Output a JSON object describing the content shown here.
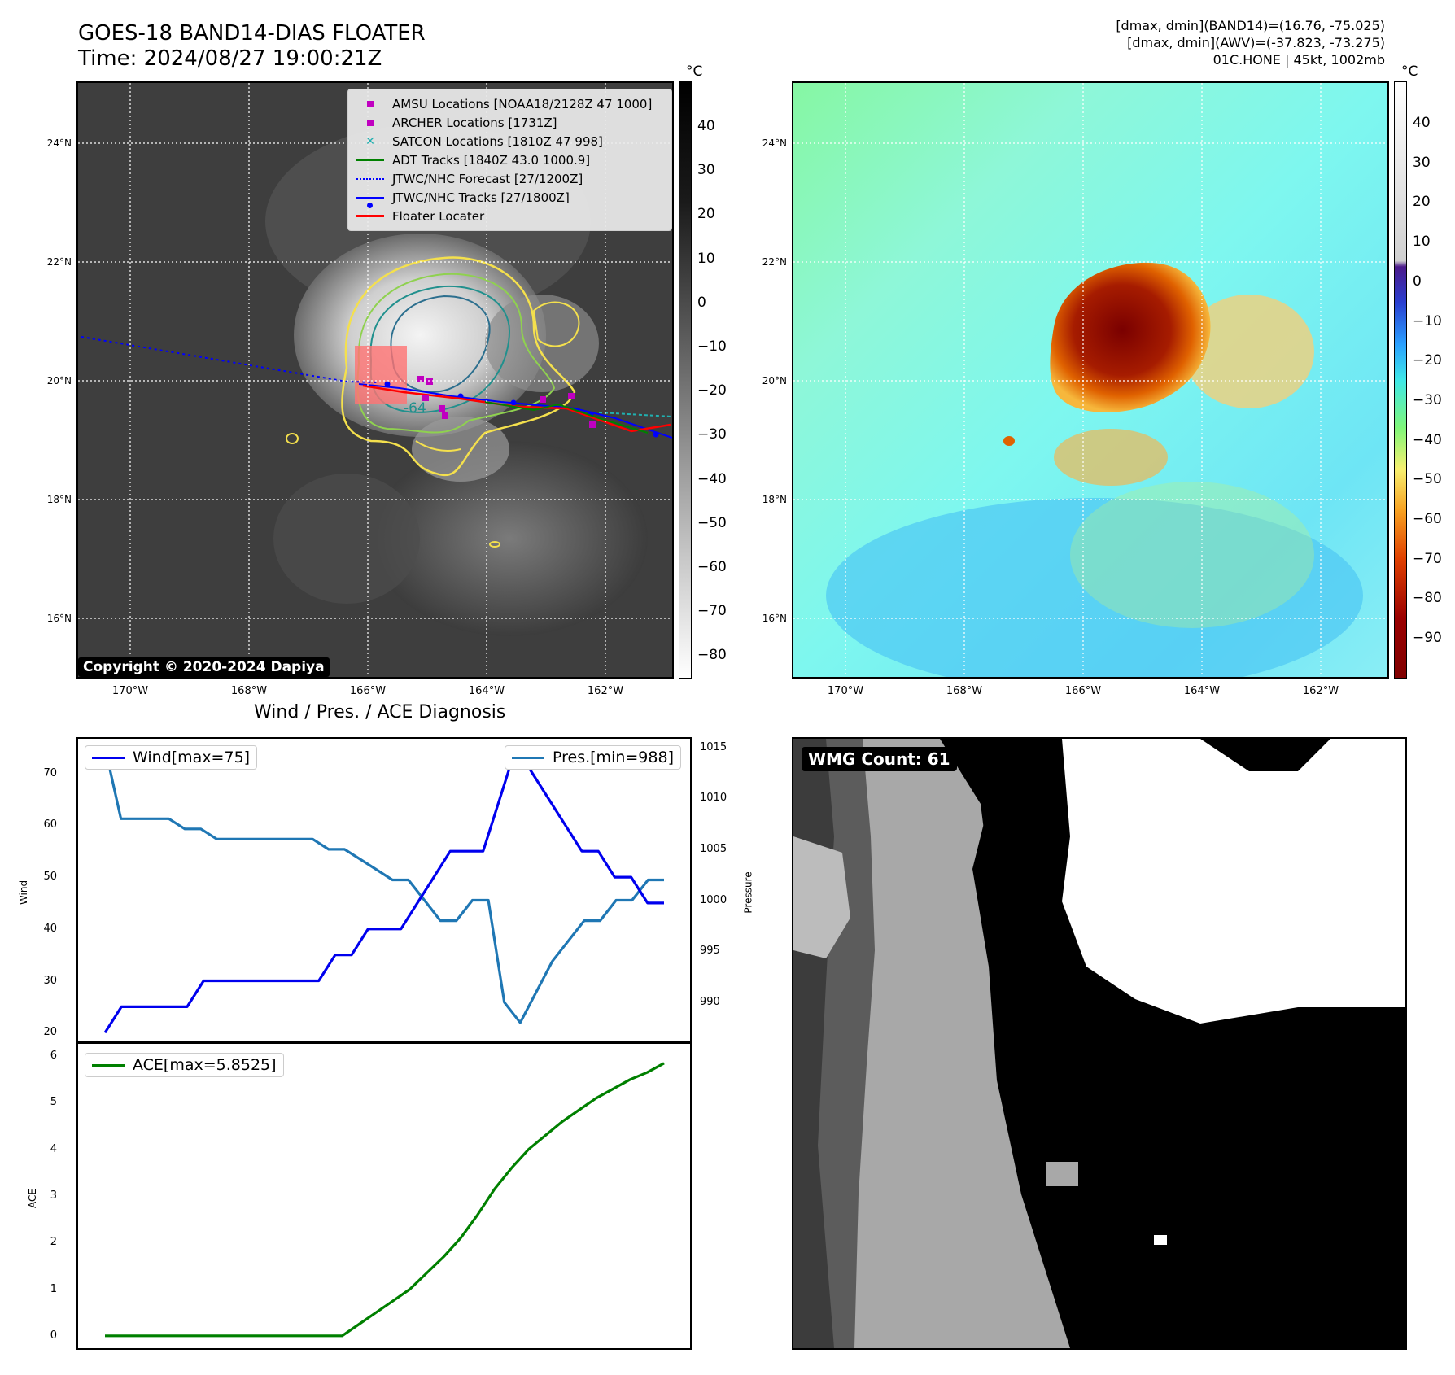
{
  "header": {
    "title_line1": "GOES-18 BAND14-DIAS FLOATER",
    "title_line2": "Time: 2024/08/27 19:00:21Z",
    "right_line1": "[dmax, dmin](BAND14)=(16.76, -75.025)",
    "right_line2": "[dmax, dmin](AWV)=(-37.823, -73.275)",
    "right_line3": "01C.HONE | 45kt, 1002mb"
  },
  "maps": {
    "lat_labels": [
      "24°N",
      "22°N",
      "20°N",
      "18°N",
      "16°N"
    ],
    "lon_labels": [
      "170°W",
      "168°W",
      "166°W",
      "164°W",
      "162°W"
    ],
    "copyright": "Copyright © 2020-2024 Dapiya",
    "contour_label": "-64"
  },
  "colorbar_gray": {
    "unit": "°C",
    "ticks": [
      "40",
      "30",
      "20",
      "10",
      "0",
      "−10",
      "−20",
      "−30",
      "−40",
      "−50",
      "−60",
      "−70",
      "−80"
    ]
  },
  "colorbar_color": {
    "unit": "°C",
    "ticks": [
      "40",
      "30",
      "20",
      "10",
      "0",
      "−10",
      "−20",
      "−30",
      "−40",
      "−50",
      "−60",
      "−70",
      "−80",
      "−90"
    ]
  },
  "legend": {
    "items": [
      {
        "label": "AMSU Locations [NOAA18/2128Z 47 1000]",
        "color": "#c000c0",
        "marker": "square"
      },
      {
        "label": "ARCHER Locations [1731Z]",
        "color": "#c000c0",
        "marker": "square"
      },
      {
        "label": "SATCON Locations [1810Z 47 998]",
        "color": "#20b0b0",
        "marker": "x"
      },
      {
        "label": "ADT Tracks [1840Z 43.0 1000.9]",
        "color": "#008000",
        "marker": "line"
      },
      {
        "label": "JTWC/NHC Forecast [27/1200Z]",
        "color": "#0000ff",
        "marker": "dotted"
      },
      {
        "label": "JTWC/NHC Tracks [27/1800Z]",
        "color": "#0000ff",
        "marker": "line-dot"
      },
      {
        "label": "Floater Locater",
        "color": "#ff0000",
        "marker": "line"
      }
    ]
  },
  "diagnosis": {
    "title": "Wind / Pres. / ACE Diagnosis",
    "wind_legend": "Wind[max=75]",
    "pres_legend": "Pres.[min=988]",
    "ace_legend": "ACE[max=5.8525]",
    "wind_ylabel": "Wind",
    "pres_ylabel": "Pressure",
    "ace_ylabel": "ACE",
    "wind_ticks": [
      "70",
      "60",
      "50",
      "40",
      "30",
      "20"
    ],
    "pres_ticks": [
      "1015",
      "1010",
      "1005",
      "1000",
      "995",
      "990"
    ],
    "ace_ticks": [
      "6",
      "5",
      "4",
      "3",
      "2",
      "1",
      "0"
    ]
  },
  "wmg": {
    "badge": "WMG Count: 61"
  },
  "chart_data": [
    {
      "type": "line",
      "series": [
        {
          "name": "Wind[max=75]",
          "color": "#0000ee",
          "values": [
            20,
            25,
            25,
            25,
            25,
            25,
            30,
            30,
            30,
            30,
            30,
            30,
            30,
            30,
            35,
            35,
            40,
            40,
            40,
            45,
            50,
            55,
            55,
            55,
            65,
            75,
            70,
            65,
            60,
            55,
            55,
            50,
            50,
            45,
            45
          ]
        },
        {
          "name": "Pres.[min=988]",
          "color": "#1f77b4",
          "values": [
            1015,
            1008,
            1008,
            1008,
            1008,
            1007,
            1007,
            1006,
            1006,
            1006,
            1006,
            1006,
            1006,
            1006,
            1005,
            1005,
            1004,
            1003,
            1002,
            1002,
            1000,
            998,
            998,
            1000,
            1000,
            990,
            988,
            991,
            994,
            996,
            998,
            998,
            1000,
            1000,
            1002,
            1002
          ]
        }
      ],
      "ylim_wind": [
        18,
        77
      ],
      "ylim_pres": [
        986,
        1016
      ]
    },
    {
      "type": "line",
      "series": [
        {
          "name": "ACE[max=5.8525]",
          "color": "#008000",
          "values": [
            0,
            0,
            0,
            0,
            0,
            0,
            0,
            0,
            0,
            0,
            0,
            0,
            0,
            0,
            0,
            0.25,
            0.5,
            0.75,
            1.0,
            1.35,
            1.7,
            2.1,
            2.6,
            3.15,
            3.6,
            4.0,
            4.3,
            4.6,
            4.85,
            5.1,
            5.3,
            5.5,
            5.65,
            5.85
          ]
        }
      ],
      "ylim": [
        -0.3,
        6.3
      ]
    }
  ]
}
